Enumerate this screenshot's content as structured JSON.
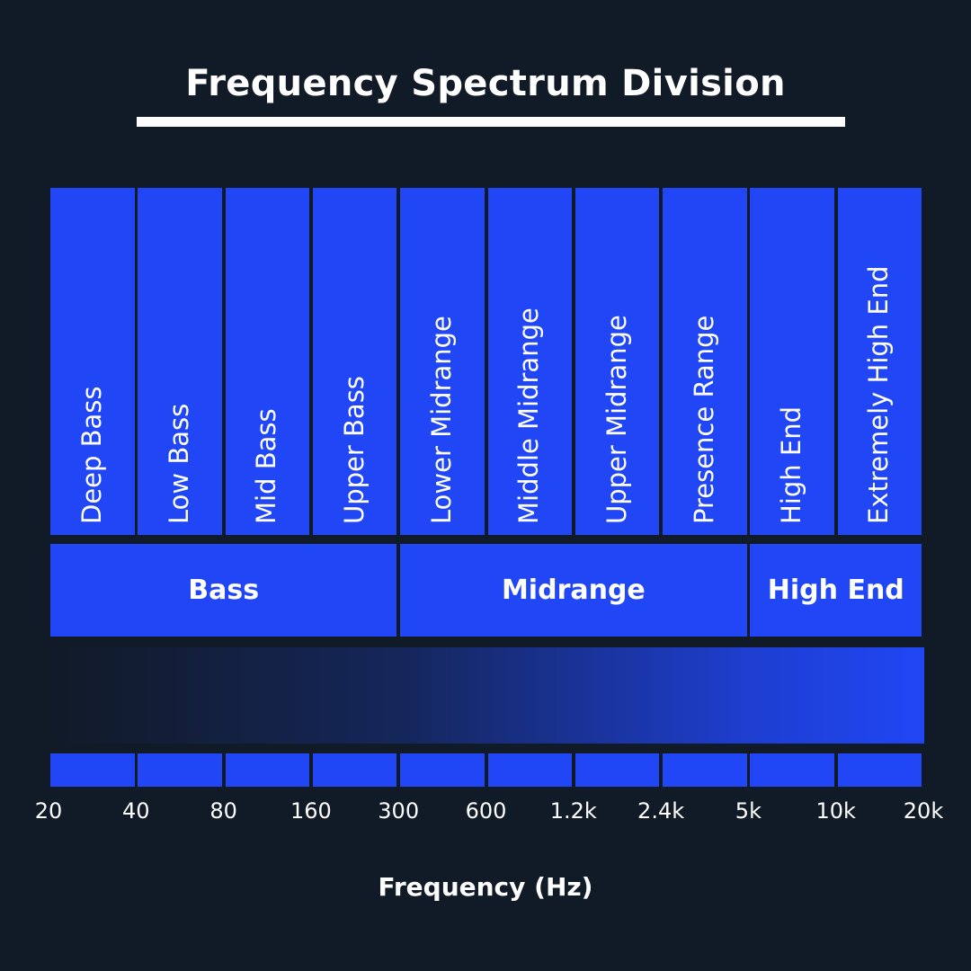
{
  "title": "Frequency Spectrum Division",
  "bands": [
    "Deep Bass",
    "Low Bass",
    "Mid Bass",
    "Upper Bass",
    "Lower Midrange",
    "Middle Midrange",
    "Upper Midrange",
    "Presence Range",
    "High End",
    "Extremely High End"
  ],
  "groups": [
    {
      "label": "Bass",
      "span": [
        0,
        4
      ]
    },
    {
      "label": "Midrange",
      "span": [
        4,
        8
      ]
    },
    {
      "label": "High End",
      "span": [
        8,
        10
      ]
    }
  ],
  "ticks": [
    "20",
    "40",
    "80",
    "160",
    "300",
    "600",
    "1.2k",
    "2.4k",
    "5k",
    "10k",
    "20k"
  ],
  "xlabel": "Frequency (Hz)",
  "colors": {
    "background": "#111a27",
    "accent": "#2046f5",
    "text": "#ffffff"
  }
}
